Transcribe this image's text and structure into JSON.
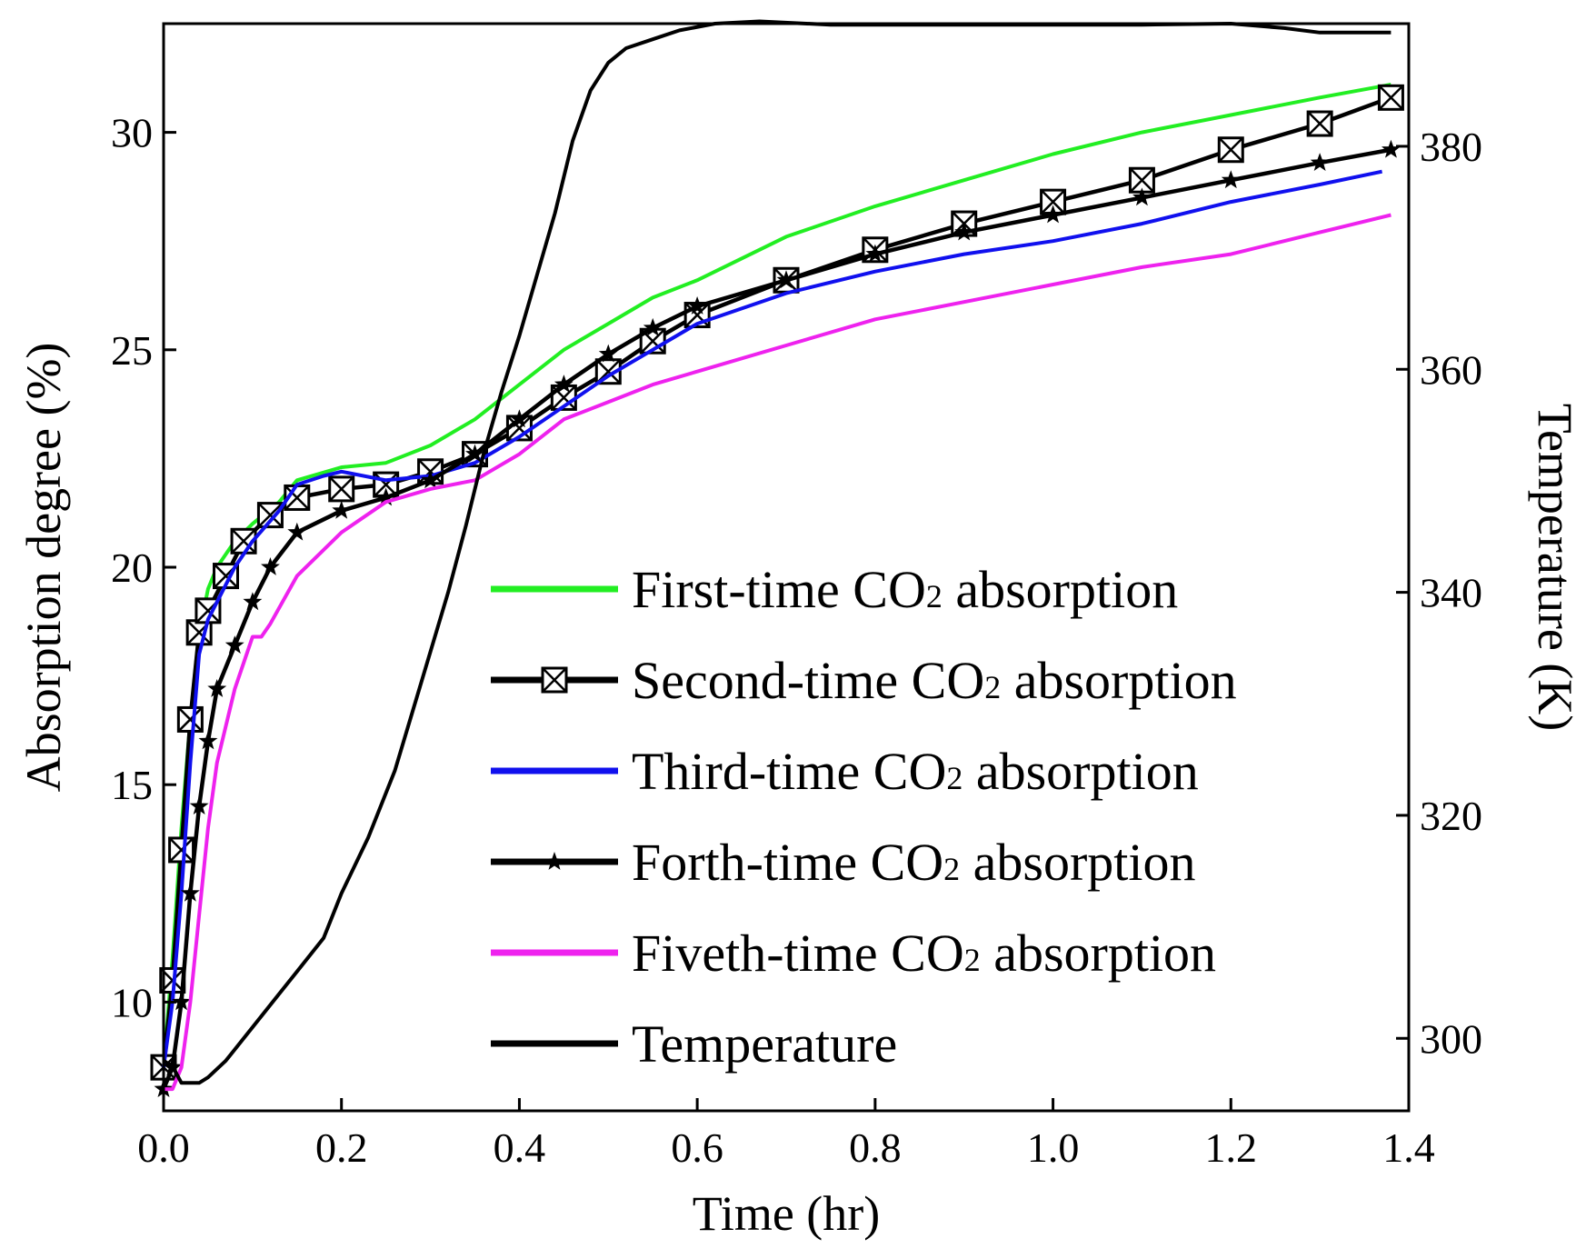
{
  "chart_data": {
    "type": "line",
    "title": "",
    "xlabel": "Time (hr)",
    "ylabel_left": "Absorption degree (%)",
    "ylabel_right": "Temperature (K)",
    "xlim": [
      0.0,
      1.4
    ],
    "ylim_left": [
      7.5,
      32.5
    ],
    "ylim_right": [
      293.5,
      391.0
    ],
    "x_ticks": [
      "0.0",
      "0.2",
      "0.4",
      "0.6",
      "0.8",
      "1.0",
      "1.2",
      "1.4"
    ],
    "y_left_ticks": [
      "10",
      "15",
      "20",
      "25",
      "30"
    ],
    "y_right_ticks": [
      "300",
      "320",
      "340",
      "360",
      "380"
    ],
    "grid": false,
    "legend_position": "lower-right",
    "series": [
      {
        "name": "First-time CO2 absorption",
        "label_main": "First-time CO",
        "label_sub": "2",
        "label_rest": " absorption",
        "axis": "left",
        "color": "#22ee22",
        "marker": "none",
        "x": [
          0.0,
          0.01,
          0.02,
          0.03,
          0.04,
          0.05,
          0.06,
          0.08,
          0.1,
          0.13,
          0.15,
          0.2,
          0.25,
          0.3,
          0.35,
          0.4,
          0.45,
          0.5,
          0.55,
          0.6,
          0.7,
          0.8,
          0.9,
          1.0,
          1.1,
          1.2,
          1.3,
          1.38
        ],
        "y": [
          8.5,
          11.0,
          14.0,
          16.5,
          18.5,
          19.5,
          20.0,
          20.6,
          21.0,
          21.5,
          22.0,
          22.3,
          22.4,
          22.8,
          23.4,
          24.2,
          25.0,
          25.6,
          26.2,
          26.6,
          27.6,
          28.3,
          28.9,
          29.5,
          30.0,
          30.4,
          30.8,
          31.1
        ]
      },
      {
        "name": "Second-time CO2 absorption",
        "label_main": "Second-time CO",
        "label_sub": "2",
        "label_rest": " absorption",
        "axis": "left",
        "color": "#000000",
        "marker": "boxx",
        "x": [
          0.0,
          0.01,
          0.02,
          0.03,
          0.04,
          0.05,
          0.07,
          0.09,
          0.12,
          0.15,
          0.2,
          0.25,
          0.3,
          0.35,
          0.4,
          0.45,
          0.5,
          0.55,
          0.6,
          0.7,
          0.8,
          0.9,
          1.0,
          1.1,
          1.2,
          1.3,
          1.38
        ],
        "y": [
          8.5,
          10.5,
          13.5,
          16.5,
          18.5,
          19.0,
          19.8,
          20.6,
          21.2,
          21.6,
          21.8,
          21.9,
          22.2,
          22.6,
          23.2,
          23.9,
          24.5,
          25.2,
          25.8,
          26.6,
          27.3,
          27.9,
          28.4,
          28.9,
          29.6,
          30.2,
          30.8
        ]
      },
      {
        "name": "Third-time CO2 absorption",
        "label_main": "Third-time CO",
        "label_sub": "2",
        "label_rest": " absorption",
        "axis": "left",
        "color": "#1010ee",
        "marker": "none",
        "x": [
          0.0,
          0.01,
          0.02,
          0.03,
          0.04,
          0.05,
          0.06,
          0.08,
          0.1,
          0.13,
          0.15,
          0.18,
          0.2,
          0.25,
          0.3,
          0.35,
          0.4,
          0.45,
          0.5,
          0.55,
          0.6,
          0.7,
          0.8,
          0.9,
          1.0,
          1.1,
          1.2,
          1.3,
          1.37
        ],
        "y": [
          8.5,
          10.0,
          12.5,
          15.5,
          18.0,
          18.8,
          19.2,
          20.0,
          20.6,
          21.3,
          21.9,
          22.1,
          22.2,
          22.0,
          22.1,
          22.4,
          23.0,
          23.7,
          24.4,
          25.0,
          25.6,
          26.3,
          26.8,
          27.2,
          27.5,
          27.9,
          28.4,
          28.8,
          29.1
        ]
      },
      {
        "name": "Forth-time CO2 absorption",
        "label_main": "Forth-time CO",
        "label_sub": "2",
        "label_rest": " absorption",
        "axis": "left",
        "color": "#000000",
        "marker": "star",
        "x": [
          0.0,
          0.01,
          0.02,
          0.03,
          0.04,
          0.05,
          0.06,
          0.08,
          0.1,
          0.12,
          0.15,
          0.2,
          0.25,
          0.3,
          0.35,
          0.4,
          0.45,
          0.5,
          0.55,
          0.6,
          0.7,
          0.8,
          0.9,
          1.0,
          1.1,
          1.2,
          1.3,
          1.38
        ],
        "y": [
          8.0,
          8.5,
          10.0,
          12.5,
          14.5,
          16.0,
          17.2,
          18.2,
          19.2,
          20.0,
          20.8,
          21.3,
          21.6,
          22.0,
          22.6,
          23.4,
          24.2,
          24.9,
          25.5,
          26.0,
          26.6,
          27.2,
          27.7,
          28.1,
          28.5,
          28.9,
          29.3,
          29.6
        ]
      },
      {
        "name": "Fiveth-time CO2 absorption",
        "label_main": "Fiveth-time CO",
        "label_sub": "2",
        "label_rest": " absorption",
        "axis": "left",
        "color": "#ee22ee",
        "marker": "none",
        "x": [
          0.0,
          0.01,
          0.02,
          0.03,
          0.04,
          0.05,
          0.06,
          0.08,
          0.09,
          0.1,
          0.11,
          0.12,
          0.15,
          0.2,
          0.25,
          0.3,
          0.35,
          0.4,
          0.45,
          0.5,
          0.55,
          0.6,
          0.7,
          0.8,
          0.9,
          1.0,
          1.1,
          1.2,
          1.3,
          1.38
        ],
        "y": [
          8.0,
          8.0,
          8.5,
          10.0,
          12.0,
          14.0,
          15.5,
          17.2,
          17.8,
          18.4,
          18.4,
          18.7,
          19.8,
          20.8,
          21.5,
          21.8,
          22.0,
          22.6,
          23.4,
          23.8,
          24.2,
          24.5,
          25.1,
          25.7,
          26.1,
          26.5,
          26.9,
          27.2,
          27.7,
          28.1
        ]
      },
      {
        "name": "Temperature",
        "label_main": "Temperature",
        "label_sub": "",
        "label_rest": "",
        "axis": "right",
        "color": "#000000",
        "marker": "none",
        "x": [
          0.0,
          0.01,
          0.02,
          0.03,
          0.04,
          0.05,
          0.07,
          0.1,
          0.13,
          0.15,
          0.18,
          0.2,
          0.23,
          0.26,
          0.29,
          0.32,
          0.34,
          0.36,
          0.38,
          0.4,
          0.42,
          0.44,
          0.46,
          0.48,
          0.5,
          0.52,
          0.55,
          0.58,
          0.62,
          0.67,
          0.75,
          0.8,
          0.9,
          1.0,
          1.1,
          1.2,
          1.26,
          1.3,
          1.38
        ],
        "y": [
          298.0,
          297.5,
          296.0,
          296.0,
          296.0,
          296.5,
          298.0,
          301.0,
          304.0,
          306.0,
          309.0,
          313.0,
          318.0,
          324.0,
          332.0,
          340.0,
          346.0,
          352.5,
          358.0,
          363.0,
          368.5,
          374.0,
          380.5,
          385.0,
          387.5,
          388.8,
          389.6,
          390.4,
          391.0,
          391.2,
          390.9,
          390.9,
          390.9,
          390.9,
          390.9,
          391.0,
          390.6,
          390.2,
          390.2
        ]
      }
    ]
  }
}
